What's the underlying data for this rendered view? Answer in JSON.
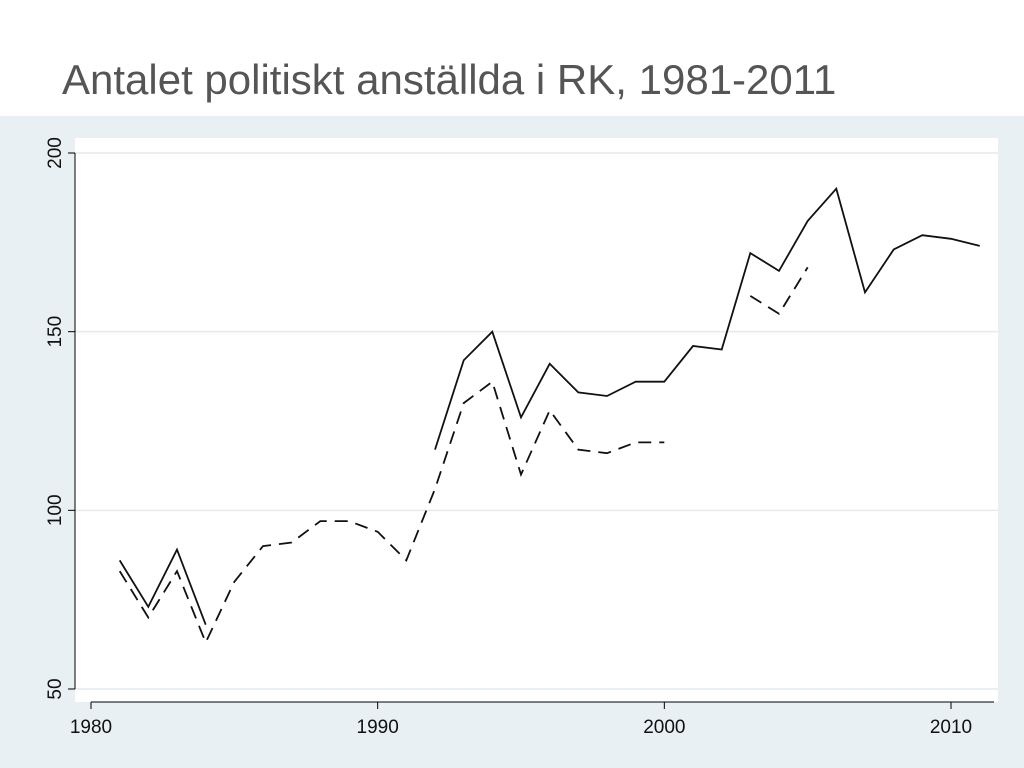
{
  "slide": {
    "title": "Antalet politiskt anställda i RK, 1981-2011"
  },
  "colors": {
    "outer_background": "#e9f0f3",
    "plot_background": "#ffffff",
    "gridline": "#e4eaed",
    "line": "#111111",
    "title_text": "#555555"
  },
  "chart_data": {
    "type": "line",
    "title": "",
    "xlabel": "",
    "ylabel": "",
    "xlim": [
      1980,
      2011.5
    ],
    "ylim": [
      50,
      200
    ],
    "x_ticks": [
      1980,
      1990,
      2000,
      2010
    ],
    "y_ticks": [
      50,
      100,
      150,
      200
    ],
    "grid": true,
    "legend": "none",
    "series": [
      {
        "style": "solid",
        "segments": [
          [
            [
              1981,
              86
            ],
            [
              1982,
              73
            ],
            [
              1983,
              89
            ],
            [
              1984,
              68
            ]
          ],
          [
            [
              1992,
              117
            ],
            [
              1993,
              142
            ],
            [
              1994,
              150
            ],
            [
              1995,
              126
            ],
            [
              1996,
              141
            ],
            [
              1997,
              133
            ],
            [
              1998,
              132
            ],
            [
              1999,
              136
            ],
            [
              2000,
              136
            ],
            [
              2001,
              146
            ],
            [
              2002,
              145
            ],
            [
              2003,
              172
            ],
            [
              2004,
              167
            ],
            [
              2005,
              181
            ],
            [
              2006,
              190
            ],
            [
              2007,
              161
            ],
            [
              2008,
              173
            ],
            [
              2009,
              177
            ],
            [
              2010,
              176
            ],
            [
              2011,
              174
            ]
          ]
        ]
      },
      {
        "style": "dashed",
        "segments": [
          [
            [
              1981,
              83
            ],
            [
              1982,
              70
            ],
            [
              1983,
              83
            ],
            [
              1984,
              63
            ],
            [
              1985,
              80
            ],
            [
              1986,
              90
            ],
            [
              1987,
              91
            ],
            [
              1988,
              97
            ],
            [
              1989,
              97
            ],
            [
              1990,
              94
            ],
            [
              1991,
              86
            ],
            [
              1992,
              106
            ],
            [
              1993,
              130
            ],
            [
              1994,
              136
            ],
            [
              1995,
              110
            ],
            [
              1996,
              128
            ],
            [
              1997,
              117
            ],
            [
              1998,
              116
            ],
            [
              1999,
              119
            ],
            [
              2000,
              119
            ]
          ],
          [
            [
              2003,
              160
            ],
            [
              2004,
              155
            ],
            [
              2005,
              168
            ]
          ]
        ]
      }
    ]
  }
}
